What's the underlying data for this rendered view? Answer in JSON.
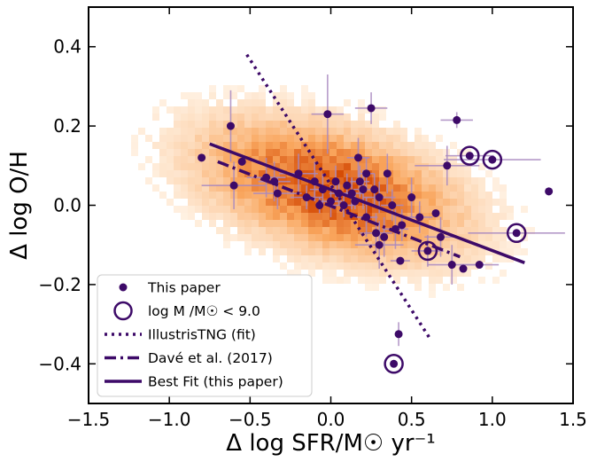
{
  "chart_data": {
    "type": "scatter",
    "xlabel": "Δ log SFR/M☉ yr⁻¹",
    "ylabel": "Δ log O/H",
    "xlim": [
      -1.5,
      1.5
    ],
    "ylim": [
      -0.5,
      0.5
    ],
    "xticks": [
      {
        "value": -1.5,
        "label": "−1.5"
      },
      {
        "value": -1.0,
        "label": "−1.0"
      },
      {
        "value": -0.5,
        "label": "−0.5"
      },
      {
        "value": 0.0,
        "label": "0.0"
      },
      {
        "value": 0.5,
        "label": "0.5"
      },
      {
        "value": 1.0,
        "label": "1.0"
      },
      {
        "value": 1.5,
        "label": "1.5"
      }
    ],
    "yticks": [
      {
        "value": -0.4,
        "label": "−0.4"
      },
      {
        "value": -0.2,
        "label": "−0.2"
      },
      {
        "value": 0.0,
        "label": "0.0"
      },
      {
        "value": 0.2,
        "label": "0.2"
      },
      {
        "value": 0.4,
        "label": "0.4"
      }
    ],
    "grid": false,
    "legend_position": "bottom-left",
    "colors": {
      "points": "#3d0a68",
      "errorbars": "#a888bf",
      "lines": "#3d0a68",
      "heat_low": "#fff1e2",
      "heat_mid": "#f9a55c",
      "heat_high": "#d54c06"
    },
    "background_density": {
      "type": "heatmap",
      "center": [
        0.0,
        0.04
      ],
      "axis_direction": [
        1,
        -0.4
      ],
      "sigma_major": 0.42,
      "sigma_minor": 0.19
    },
    "series": [
      {
        "name": "This paper",
        "type": "scatter",
        "points": [
          {
            "x": -0.8,
            "y": 0.12,
            "xerr": 0.0,
            "yerr": 0.0
          },
          {
            "x": -0.62,
            "y": 0.2,
            "xerr": 0.0,
            "yerr": 0.09
          },
          {
            "x": -0.6,
            "y": 0.05,
            "xerr": 0.2,
            "yerr": 0.06
          },
          {
            "x": -0.55,
            "y": 0.11,
            "xerr": 0.0,
            "yerr": 0.0
          },
          {
            "x": -0.4,
            "y": 0.07,
            "xerr": 0.12,
            "yerr": 0.05
          },
          {
            "x": -0.35,
            "y": 0.06,
            "xerr": 0.1,
            "yerr": 0.05
          },
          {
            "x": -0.33,
            "y": 0.03,
            "xerr": 0.15,
            "yerr": 0.04
          },
          {
            "x": -0.2,
            "y": 0.08,
            "xerr": 0.12,
            "yerr": 0.05
          },
          {
            "x": -0.15,
            "y": 0.02,
            "xerr": 0.1,
            "yerr": 0.03
          },
          {
            "x": -0.1,
            "y": 0.06,
            "xerr": 0.0,
            "yerr": 0.05
          },
          {
            "x": -0.07,
            "y": 0.0,
            "xerr": 0.0,
            "yerr": 0.02
          },
          {
            "x": -0.05,
            "y": 0.04,
            "xerr": 0.08,
            "yerr": 0.04
          },
          {
            "x": -0.02,
            "y": 0.23,
            "xerr": 0.1,
            "yerr": 0.1
          },
          {
            "x": 0.0,
            "y": 0.01,
            "xerr": 0.07,
            "yerr": 0.04
          },
          {
            "x": 0.03,
            "y": 0.06,
            "xerr": 0.0,
            "yerr": 0.04
          },
          {
            "x": 0.05,
            "y": 0.03,
            "xerr": 0.06,
            "yerr": 0.03
          },
          {
            "x": 0.08,
            "y": 0.0,
            "xerr": 0.07,
            "yerr": 0.03
          },
          {
            "x": 0.1,
            "y": 0.05,
            "xerr": 0.0,
            "yerr": 0.03
          },
          {
            "x": 0.13,
            "y": 0.03,
            "xerr": 0.07,
            "yerr": 0.04
          },
          {
            "x": 0.15,
            "y": 0.01,
            "xerr": 0.0,
            "yerr": 0.02
          },
          {
            "x": 0.17,
            "y": 0.12,
            "xerr": 0.07,
            "yerr": 0.05
          },
          {
            "x": 0.18,
            "y": 0.06,
            "xerr": 0.06,
            "yerr": 0.04
          },
          {
            "x": 0.2,
            "y": 0.04,
            "xerr": 0.06,
            "yerr": 0.05
          },
          {
            "x": 0.22,
            "y": 0.08,
            "xerr": 0.05,
            "yerr": 0.04
          },
          {
            "x": 0.22,
            "y": -0.03,
            "xerr": 0.07,
            "yerr": 0.05
          },
          {
            "x": 0.25,
            "y": 0.245,
            "xerr": 0.1,
            "yerr": 0.04
          },
          {
            "x": 0.27,
            "y": 0.04,
            "xerr": 0.0,
            "yerr": 0.04
          },
          {
            "x": 0.28,
            "y": -0.07,
            "xerr": 0.1,
            "yerr": 0.05
          },
          {
            "x": 0.3,
            "y": 0.02,
            "xerr": 0.1,
            "yerr": 0.04
          },
          {
            "x": 0.3,
            "y": -0.1,
            "xerr": 0.15,
            "yerr": 0.06
          },
          {
            "x": 0.33,
            "y": -0.08,
            "xerr": 0.0,
            "yerr": 0.05
          },
          {
            "x": 0.35,
            "y": 0.08,
            "xerr": 0.0,
            "yerr": 0.05
          },
          {
            "x": 0.38,
            "y": 0.0,
            "xerr": 0.07,
            "yerr": 0.04
          },
          {
            "x": 0.4,
            "y": -0.06,
            "xerr": 0.08,
            "yerr": 0.05
          },
          {
            "x": 0.43,
            "y": -0.14,
            "xerr": 0.06,
            "yerr": 0.0
          },
          {
            "x": 0.44,
            "y": -0.05,
            "xerr": 0.0,
            "yerr": 0.04
          },
          {
            "x": 0.5,
            "y": 0.02,
            "xerr": 0.0,
            "yerr": 0.05
          },
          {
            "x": 0.55,
            "y": -0.03,
            "xerr": 0.08,
            "yerr": 0.04
          },
          {
            "x": 0.65,
            "y": -0.02,
            "xerr": 0.0,
            "yerr": 0.0
          },
          {
            "x": 0.68,
            "y": -0.08,
            "xerr": 0.1,
            "yerr": 0.05
          },
          {
            "x": 0.72,
            "y": 0.1,
            "xerr": 0.2,
            "yerr": 0.05
          },
          {
            "x": 0.75,
            "y": -0.15,
            "xerr": 0.15,
            "yerr": 0.05
          },
          {
            "x": 0.78,
            "y": 0.215,
            "xerr": 0.1,
            "yerr": 0.02
          },
          {
            "x": 0.82,
            "y": -0.16,
            "xerr": 0.0,
            "yerr": 0.0
          },
          {
            "x": 0.92,
            "y": -0.15,
            "xerr": 0.12,
            "yerr": 0.0
          },
          {
            "x": 0.42,
            "y": -0.325,
            "xerr": 0.0,
            "yerr": 0.03
          },
          {
            "x": 1.35,
            "y": 0.035,
            "xerr": 0.0,
            "yerr": 0.01
          }
        ]
      },
      {
        "name": "log M /M☉ < 9.0",
        "type": "scatter",
        "marker": "open-circle-around-point",
        "points": [
          {
            "x": 0.6,
            "y": -0.115,
            "xerr": 0.1,
            "yerr": 0.04
          },
          {
            "x": 0.86,
            "y": 0.125,
            "xerr": 0.15,
            "yerr": 0.0
          },
          {
            "x": 1.0,
            "y": 0.115,
            "xerr": 0.3,
            "yerr": 0.0
          },
          {
            "x": 1.15,
            "y": -0.07,
            "xerr": 0.3,
            "yerr": 0.0
          },
          {
            "x": 0.39,
            "y": -0.4,
            "xerr": 0.0,
            "yerr": 0.0
          }
        ]
      },
      {
        "name": "IllustrisTNG (fit)",
        "type": "line",
        "style": "dotted",
        "points": [
          {
            "x": -0.52,
            "y": 0.38
          },
          {
            "x": 0.62,
            "y": -0.34
          }
        ]
      },
      {
        "name": "Davé et al. (2017)",
        "type": "line",
        "style": "dashdot",
        "points": [
          {
            "x": -0.7,
            "y": 0.11
          },
          {
            "x": 0.8,
            "y": -0.13
          }
        ]
      },
      {
        "name": "Best Fit (this paper)",
        "type": "line",
        "style": "solid",
        "points": [
          {
            "x": -0.75,
            "y": 0.155
          },
          {
            "x": 1.2,
            "y": -0.145
          }
        ]
      }
    ],
    "legend": [
      {
        "label": "This paper",
        "marker": "dot"
      },
      {
        "label": "log M /M☉ < 9.0",
        "marker": "open-circle"
      },
      {
        "label": "IllustrisTNG (fit)",
        "marker": "dotted-line"
      },
      {
        "label": "Davé et al. (2017)",
        "marker": "dashdot-line"
      },
      {
        "label": "Best Fit (this paper)",
        "marker": "solid-line"
      }
    ]
  }
}
